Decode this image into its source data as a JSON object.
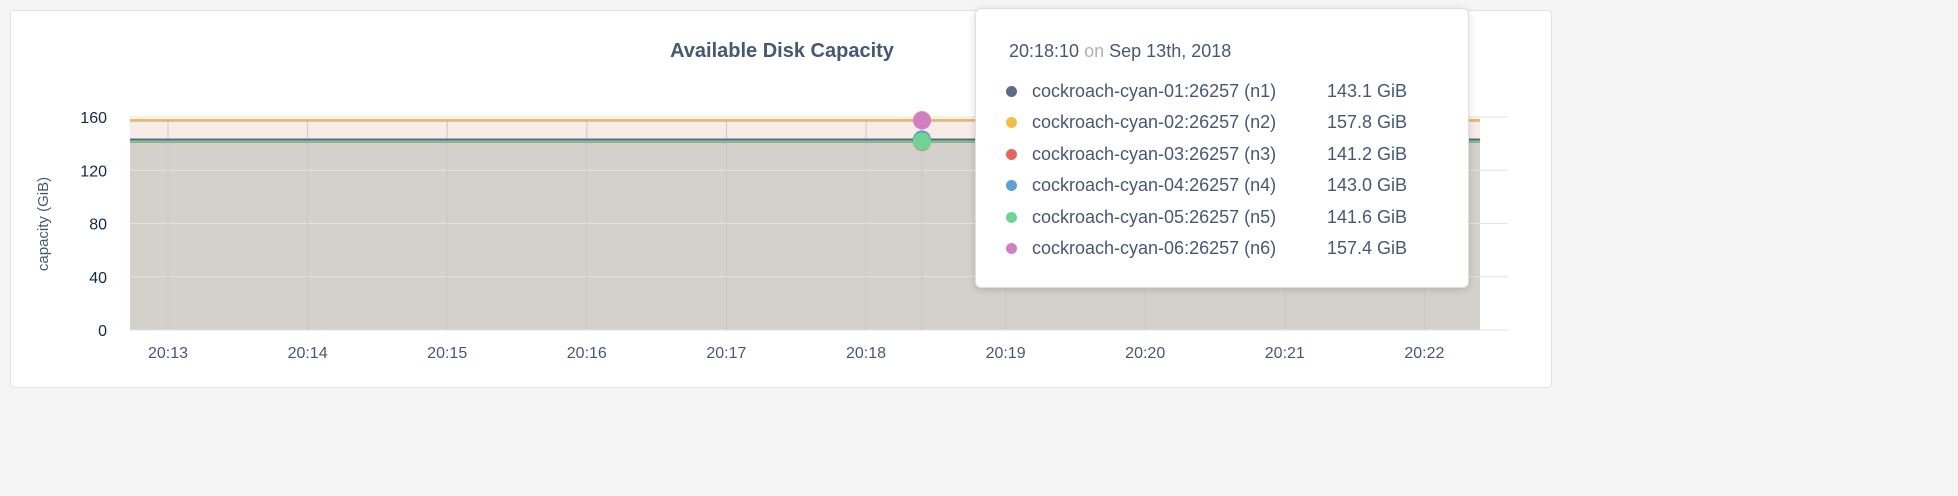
{
  "chart_data": {
    "type": "area",
    "title": "Available Disk Capacity",
    "ylabel": "capacity (GiB)",
    "xlabel": "",
    "ylim": [
      0,
      160
    ],
    "yticks": [
      "0",
      "40",
      "80",
      "120",
      "160"
    ],
    "xticks": [
      "20:13",
      "20:14",
      "20:15",
      "20:16",
      "20:17",
      "20:18",
      "20:19",
      "20:20",
      "20:21",
      "20:22"
    ],
    "grid": true,
    "series": [
      {
        "name": "cockroach-cyan-01:26257 (n1)",
        "color": "#5f6c87",
        "value": 143.1,
        "label": "143.1 GiB"
      },
      {
        "name": "cockroach-cyan-02:26257 (n2)",
        "color": "#f0bf46",
        "value": 157.8,
        "label": "157.8 GiB"
      },
      {
        "name": "cockroach-cyan-03:26257 (n3)",
        "color": "#e2675e",
        "value": 141.2,
        "label": "141.2 GiB"
      },
      {
        "name": "cockroach-cyan-04:26257 (n4)",
        "color": "#5d9fd6",
        "value": 143.0,
        "label": "143.0 GiB"
      },
      {
        "name": "cockroach-cyan-05:26257 (n5)",
        "color": "#6fd493",
        "value": 141.6,
        "label": "141.6 GiB"
      },
      {
        "name": "cockroach-cyan-06:26257 (n6)",
        "color": "#d17fc3",
        "value": 157.4,
        "label": "157.4 GiB"
      }
    ]
  },
  "tooltip": {
    "time": "20:18:10",
    "on": "on",
    "date": "Sep 13th, 2018"
  }
}
